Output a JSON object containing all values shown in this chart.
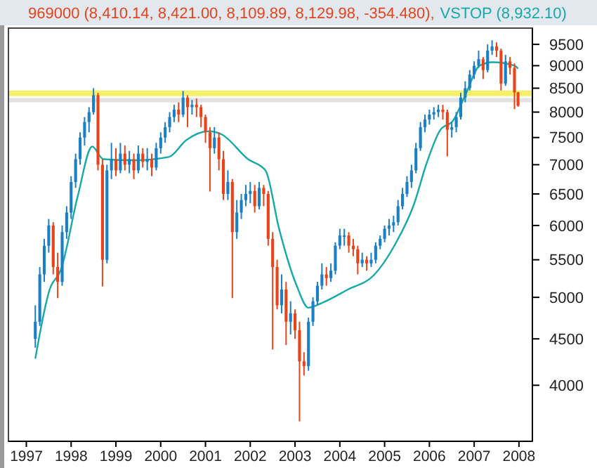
{
  "chart_data": {
    "type": "candlestick",
    "legend": "top",
    "log": true,
    "xlim": [
      1996.6,
      2008.3
    ],
    "ylim": [
      3470,
      9900
    ],
    "xticks": [
      {
        "value": 1997,
        "label": "1997"
      },
      {
        "value": 1998,
        "label": "1998"
      },
      {
        "value": 1999,
        "label": "1999"
      },
      {
        "value": 2000,
        "label": "2000"
      },
      {
        "value": 2001,
        "label": "2001"
      },
      {
        "value": 2002,
        "label": "2002"
      },
      {
        "value": 2003,
        "label": "2003"
      },
      {
        "value": 2004,
        "label": "2004"
      },
      {
        "value": 2005,
        "label": "2005"
      },
      {
        "value": 2006,
        "label": "2006"
      },
      {
        "value": 2007,
        "label": "2007"
      },
      {
        "value": 2008,
        "label": "2008"
      }
    ],
    "yticks": [
      4000,
      4500,
      5000,
      5500,
      6000,
      6500,
      7000,
      7500,
      8000,
      8500,
      9000,
      9500
    ],
    "ref_lines": [
      {
        "axis": "y",
        "value": 8390,
        "color": "#f4f06a"
      }
    ],
    "bands": [
      {
        "axis": "y",
        "from": 8200,
        "to": 8290,
        "color": "#e2e2e2"
      }
    ],
    "series": [
      {
        "name": "969000 (8,410.14, 8,421.00, 8,109.89, 8,129.98, -354.480),",
        "color": "#e8441c",
        "colors": [
          "#1b7fc6",
          "#1b7fc6",
          "#1b7fc6",
          "#1b7fc6",
          "#e8441c",
          "#e8441c",
          "#1b7fc6",
          "#1b7fc6",
          "#1b7fc6",
          "#1b7fc6",
          "#1b7fc6",
          "#1b7fc6",
          "#1b7fc6",
          "#1b7fc6",
          "#e8441c",
          "#e8441c",
          "#1b7fc6",
          "#1b7fc6",
          "#e8441c",
          "#1b7fc6",
          "#e8441c",
          "#1b7fc6",
          "#e8441c",
          "#1b7fc6",
          "#e8441c",
          "#1b7fc6",
          "#e8441c",
          "#1b7fc6",
          "#1b7fc6",
          "#1b7fc6",
          "#1b7fc6",
          "#1b7fc6",
          "#e8441c",
          "#1b7fc6",
          "#e8441c",
          "#1b7fc6",
          "#e8441c",
          "#e8441c",
          "#e8441c",
          "#e8441c",
          "#1b7fc6",
          "#e8441c",
          "#e8441c",
          "#1b7fc6",
          "#e8441c",
          "#1b7fc6",
          "#1b7fc6",
          "#1b7fc6",
          "#1b7fc6",
          "#e8441c",
          "#1b7fc6",
          "#e8441c",
          "#e8441c",
          "#e8441c",
          "#e8441c",
          "#1b7fc6",
          "#e8441c",
          "#1b7fc6",
          "#e8441c",
          "#e8441c",
          "#e8441c",
          "#1b7fc6",
          "#1b7fc6",
          "#1b7fc6",
          "#1b7fc6",
          "#e8441c",
          "#1b7fc6",
          "#1b7fc6",
          "#1b7fc6",
          "#1b7fc6",
          "#e8441c",
          "#e8441c",
          "#e8441c",
          "#1b7fc6",
          "#e8441c",
          "#1b7fc6",
          "#1b7fc6",
          "#1b7fc6",
          "#1b7fc6",
          "#1b7fc6",
          "#1b7fc6",
          "#1b7fc6",
          "#1b7fc6",
          "#1b7fc6",
          "#1b7fc6",
          "#1b7fc6",
          "#1b7fc6",
          "#1b7fc6",
          "#1b7fc6",
          "#1b7fc6",
          "#1b7fc6",
          "#e8441c",
          "#e8441c",
          "#1b7fc6",
          "#1b7fc6",
          "#1b7fc6",
          "#1b7fc6",
          "#1b7fc6",
          "#1b7fc6",
          "#1b7fc6",
          "#e8441c",
          "#1b7fc6",
          "#1b7fc6",
          "#e8441c",
          "#e8441c",
          "#1b7fc6",
          "#e8441c",
          "#e8441c",
          "#e8441c"
        ],
        "x": [
          1997.2,
          1997.3,
          1997.4,
          1997.5,
          1997.6,
          1997.7,
          1997.8,
          1997.9,
          1998.0,
          1998.1,
          1998.2,
          1998.3,
          1998.4,
          1998.5,
          1998.6,
          1998.7,
          1998.8,
          1998.9,
          1999.0,
          1999.1,
          1999.2,
          1999.3,
          1999.4,
          1999.5,
          1999.6,
          1999.7,
          1999.8,
          1999.9,
          2000.0,
          2000.1,
          2000.2,
          2000.3,
          2000.4,
          2000.5,
          2000.6,
          2000.7,
          2000.8,
          2000.9,
          2001.0,
          2001.1,
          2001.2,
          2001.3,
          2001.4,
          2001.5,
          2001.6,
          2001.7,
          2001.8,
          2001.9,
          2002.0,
          2002.1,
          2002.2,
          2002.3,
          2002.4,
          2002.5,
          2002.6,
          2002.7,
          2002.8,
          2002.9,
          2003.0,
          2003.1,
          2003.2,
          2003.3,
          2003.4,
          2003.5,
          2003.6,
          2003.7,
          2003.8,
          2003.9,
          2004.0,
          2004.1,
          2004.2,
          2004.3,
          2004.4,
          2004.5,
          2004.6,
          2004.7,
          2004.8,
          2004.9,
          2005.0,
          2005.1,
          2005.2,
          2005.3,
          2005.4,
          2005.5,
          2005.6,
          2005.7,
          2005.8,
          2005.9,
          2006.0,
          2006.1,
          2006.2,
          2006.3,
          2006.4,
          2006.5,
          2006.6,
          2006.7,
          2006.8,
          2006.9,
          2007.0,
          2007.1,
          2007.2,
          2007.3,
          2007.4,
          2007.5,
          2007.6,
          2007.7,
          2007.8,
          2007.9,
          2007.98
        ],
        "ohlc": [
          [
            4500,
            4900,
            4400,
            4700
          ],
          [
            4700,
            5400,
            4650,
            5300
          ],
          [
            5300,
            5800,
            5200,
            5700
          ],
          [
            5700,
            6100,
            5600,
            6000
          ],
          [
            6000,
            6050,
            5300,
            5400
          ],
          [
            5400,
            5600,
            4990,
            5200
          ],
          [
            5200,
            6000,
            5150,
            5900
          ],
          [
            5900,
            6300,
            5800,
            6200
          ],
          [
            6200,
            6800,
            6100,
            6700
          ],
          [
            6700,
            7200,
            6600,
            7100
          ],
          [
            7100,
            7600,
            7000,
            7500
          ],
          [
            7500,
            7900,
            7350,
            7800
          ],
          [
            7800,
            8100,
            7600,
            8000
          ],
          [
            8000,
            8500,
            7950,
            8350
          ],
          [
            8350,
            8400,
            6900,
            7000
          ],
          [
            7000,
            7100,
            5140,
            5500
          ],
          [
            5500,
            7000,
            5450,
            6900
          ],
          [
            6900,
            7400,
            6750,
            7100
          ],
          [
            7100,
            7300,
            6800,
            6900
          ],
          [
            6900,
            7400,
            6850,
            7200
          ],
          [
            7200,
            7350,
            6900,
            7000
          ],
          [
            7000,
            7250,
            6850,
            7100
          ],
          [
            7100,
            7200,
            6750,
            6900
          ],
          [
            6900,
            7350,
            6850,
            7200
          ],
          [
            7200,
            7300,
            6950,
            7050
          ],
          [
            7050,
            7300,
            6900,
            7100
          ],
          [
            7100,
            7200,
            6800,
            6950
          ],
          [
            6950,
            7400,
            6900,
            7300
          ],
          [
            7300,
            7600,
            7200,
            7500
          ],
          [
            7500,
            7800,
            7400,
            7700
          ],
          [
            7700,
            8000,
            7600,
            7900
          ],
          [
            7900,
            8150,
            7800,
            8050
          ],
          [
            8050,
            8200,
            7800,
            7950
          ],
          [
            7950,
            8440,
            7900,
            8300
          ],
          [
            8300,
            8350,
            7700,
            8100
          ],
          [
            8100,
            8250,
            7950,
            8150
          ],
          [
            8150,
            8280,
            7900,
            8100
          ],
          [
            8100,
            8150,
            7700,
            7900
          ],
          [
            7900,
            7950,
            7400,
            7600
          ],
          [
            7600,
            7700,
            6540,
            7300
          ],
          [
            7300,
            7700,
            7200,
            7500
          ],
          [
            7500,
            7600,
            6900,
            7100
          ],
          [
            7100,
            7250,
            6400,
            6500
          ],
          [
            6500,
            6900,
            6400,
            6700
          ],
          [
            6700,
            6750,
            4990,
            5900
          ],
          [
            5900,
            6400,
            5800,
            6200
          ],
          [
            6200,
            6500,
            6100,
            6400
          ],
          [
            6400,
            6650,
            6300,
            6500
          ],
          [
            6500,
            6700,
            6350,
            6550
          ],
          [
            6550,
            6650,
            6200,
            6300
          ],
          [
            6300,
            6700,
            6250,
            6600
          ],
          [
            6600,
            6650,
            6300,
            6500
          ],
          [
            6500,
            6550,
            5700,
            5800
          ],
          [
            5800,
            5900,
            4380,
            5400
          ],
          [
            5400,
            5500,
            4850,
            4900
          ],
          [
            4900,
            5300,
            4800,
            5100
          ],
          [
            5100,
            5200,
            4430,
            4700
          ],
          [
            4700,
            4950,
            4550,
            4800
          ],
          [
            4800,
            4850,
            4500,
            4600
          ],
          [
            4600,
            4700,
            3650,
            4250
          ],
          [
            4250,
            4350,
            4100,
            4200
          ],
          [
            4200,
            4750,
            4150,
            4700
          ],
          [
            4700,
            5000,
            4650,
            4950
          ],
          [
            4950,
            5200,
            4900,
            5150
          ],
          [
            5150,
            5450,
            5100,
            5300
          ],
          [
            5300,
            5400,
            5150,
            5250
          ],
          [
            5250,
            5450,
            5200,
            5350
          ],
          [
            5350,
            5750,
            5300,
            5700
          ],
          [
            5700,
            5950,
            5650,
            5850
          ],
          [
            5850,
            5950,
            5700,
            5850
          ],
          [
            5850,
            5900,
            5600,
            5700
          ],
          [
            5700,
            5800,
            5550,
            5650
          ],
          [
            5650,
            5700,
            5300,
            5450
          ],
          [
            5450,
            5600,
            5400,
            5500
          ],
          [
            5500,
            5550,
            5350,
            5450
          ],
          [
            5450,
            5600,
            5400,
            5500
          ],
          [
            5500,
            5750,
            5450,
            5700
          ],
          [
            5700,
            5850,
            5650,
            5800
          ],
          [
            5800,
            6000,
            5750,
            5950
          ],
          [
            5950,
            6100,
            5850,
            6000
          ],
          [
            6000,
            6150,
            5900,
            6050
          ],
          [
            6050,
            6400,
            6000,
            6300
          ],
          [
            6300,
            6600,
            6250,
            6500
          ],
          [
            6500,
            6800,
            6450,
            6700
          ],
          [
            6700,
            7000,
            6600,
            6900
          ],
          [
            6900,
            7400,
            6850,
            7300
          ],
          [
            7300,
            7800,
            7250,
            7700
          ],
          [
            7700,
            7950,
            7600,
            7850
          ],
          [
            7850,
            8050,
            7750,
            7950
          ],
          [
            7950,
            8100,
            7850,
            8000
          ],
          [
            8000,
            8150,
            7900,
            8050
          ],
          [
            8050,
            8150,
            7850,
            8000
          ],
          [
            8000,
            8050,
            7150,
            7650
          ],
          [
            7650,
            7800,
            7500,
            7700
          ],
          [
            7700,
            8000,
            7600,
            7900
          ],
          [
            7900,
            8400,
            7850,
            8300
          ],
          [
            8300,
            8650,
            8200,
            8500
          ],
          [
            8500,
            8900,
            8450,
            8800
          ],
          [
            8800,
            9100,
            8700,
            9000
          ],
          [
            9000,
            9350,
            8950,
            9150
          ],
          [
            9150,
            9200,
            8700,
            8900
          ],
          [
            8900,
            9500,
            8850,
            9350
          ],
          [
            9350,
            9600,
            9250,
            9450
          ],
          [
            9450,
            9550,
            9200,
            9350
          ],
          [
            9350,
            9400,
            8450,
            8600
          ],
          [
            8600,
            9250,
            8550,
            9100
          ],
          [
            9100,
            9200,
            8800,
            8950
          ],
          [
            8950,
            9050,
            8060,
            8410
          ],
          [
            8410.14,
            8421.0,
            8109.89,
            8129.98
          ]
        ]
      },
      {
        "type": "line",
        "name": "VSTOP (8,932.10)",
        "color": "#17a8a8",
        "x": [
          1997.2,
          1997.52,
          1997.77,
          1998.15,
          1998.47,
          1998.72,
          1999.4,
          2000.18,
          2000.57,
          2001.07,
          2001.36,
          2001.95,
          2002.34,
          2002.64,
          2003.03,
          2003.3,
          2003.6,
          2004.18,
          2004.76,
          2005.26,
          2005.65,
          2005.94,
          2006.24,
          2006.53,
          2006.82,
          2007.12,
          2007.41,
          2007.9,
          2007.98
        ],
        "values": [
          4280,
          5100,
          5360,
          6470,
          7330,
          7100,
          7080,
          7140,
          7450,
          7620,
          7560,
          7100,
          6900,
          5960,
          5160,
          4870,
          4930,
          5100,
          5290,
          5750,
          6320,
          7030,
          7640,
          7830,
          8390,
          9000,
          9080,
          9000,
          8932.1
        ]
      }
    ]
  }
}
